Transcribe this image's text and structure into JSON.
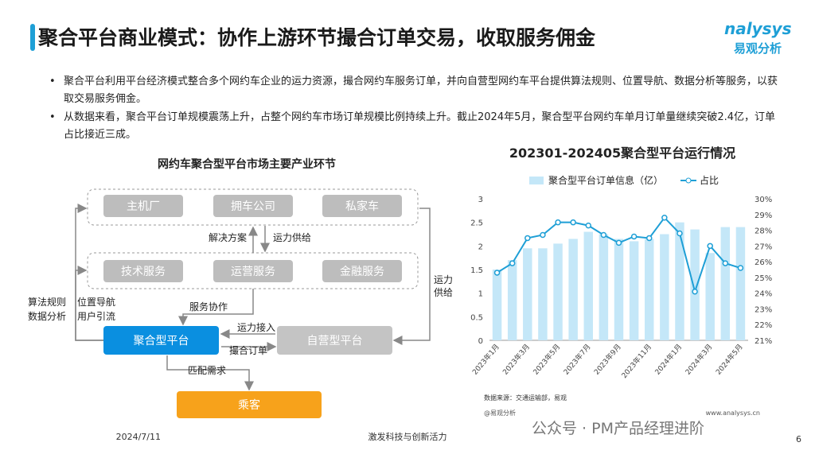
{
  "header": {
    "title": "聚合平台商业模式：协作上游环节撮合订单交易，收取服务佣金",
    "logo_en": "nalysys",
    "logo_cn": "易观分析"
  },
  "bullets": [
    "聚合平台利用平台经济模式整合多个网约车企业的运力资源，撮合网约车服务订单，并向自营型网约车平台提供算法规则、位置导航、数据分析等服务，以获取交易服务佣金。",
    "从数据来看，聚合平台订单规模震荡上升，占整个网约车市场订单规模比例持续上升。截止2024年5月，聚合型平台网约车单月订单量继续突破2.4亿，订单占比接近三成。"
  ],
  "diagram": {
    "title": "网约车聚合型平台市场主要产业环节",
    "nodes": [
      "主机厂",
      "拥车公司",
      "私家车",
      "技术服务",
      "运营服务",
      "金融服务",
      "聚合型平台",
      "自营型平台",
      "乘客"
    ],
    "edge_labels": [
      "解决方案",
      "运力供给",
      "服务协作",
      "运力接入",
      "撮合订单",
      "匹配需求",
      "算法规则",
      "数据分析",
      "位置导航",
      "用户引流",
      "运力",
      "供给"
    ]
  },
  "chart_data": {
    "type": "combo",
    "title": "202301-202405聚合型平台运行情况",
    "categories": [
      "2023年1月",
      null,
      "2023年3月",
      null,
      "2023年5月",
      null,
      "2023年7月",
      null,
      "2023年9月",
      null,
      "2023年11月",
      null,
      "2024年1月",
      null,
      "2024年3月",
      null,
      "2024年5月"
    ],
    "series": [
      {
        "name": "聚合型平台订单信息（亿）",
        "type": "bar",
        "color": "#c4e7f8",
        "values": [
          1.5,
          1.7,
          1.95,
          1.95,
          2.05,
          2.15,
          2.3,
          2.25,
          2.15,
          2.1,
          2.15,
          2.25,
          2.5,
          2.35,
          1.85,
          2.4,
          2.4
        ]
      },
      {
        "name": "占比",
        "type": "line",
        "axis": "y2",
        "color": "#1e9fd6",
        "values": [
          25.3,
          25.9,
          27.5,
          27.7,
          28.5,
          28.5,
          28.3,
          27.7,
          27.2,
          27.6,
          27.5,
          28.8,
          27.8,
          24.1,
          27.0,
          25.9,
          25.6
        ]
      }
    ],
    "ylim": [
      0,
      3
    ],
    "yticks": [
      0,
      0.5,
      1,
      1.5,
      2,
      2.5,
      3
    ],
    "y2lim": [
      21,
      30
    ],
    "y2ticks": [
      {
        "value": 21,
        "label": "21%"
      },
      {
        "value": 22,
        "label": "22%"
      },
      {
        "value": 23,
        "label": "23%"
      },
      {
        "value": 24,
        "label": "24%"
      },
      {
        "value": 25,
        "label": "25%"
      },
      {
        "value": 26,
        "label": "26%"
      },
      {
        "value": 27,
        "label": "27%"
      },
      {
        "value": 28,
        "label": "28%"
      },
      {
        "value": 29,
        "label": "29%"
      },
      {
        "value": 30,
        "label": "30%"
      }
    ],
    "legend": "top",
    "source": "数据来源：交通运输部，易观"
  },
  "footer": {
    "date": "2024/7/11",
    "slogan": "激发科技与创新活力",
    "page": "6",
    "watermark": "@易观分析",
    "site": "www.analysys.cn",
    "wechat": "公众号 · PM产品经理进阶"
  }
}
